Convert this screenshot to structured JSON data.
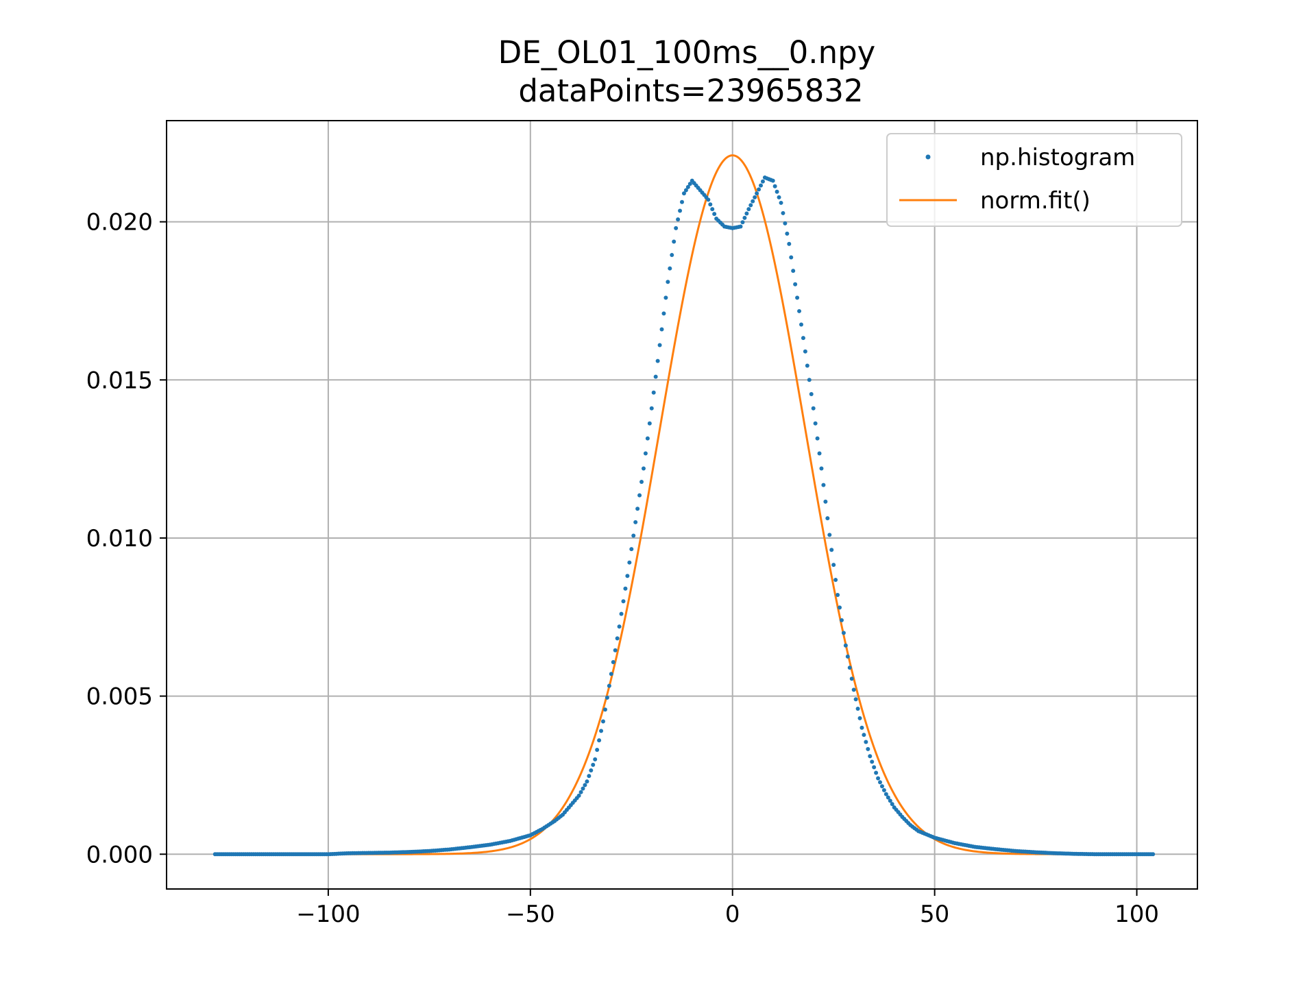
{
  "chart_data": {
    "type": "scatter",
    "title": "DE_OL01_100ms__0.npy",
    "subtitle": "dataPoints=23965832",
    "xlabel": "",
    "ylabel": "",
    "xlim": [
      -140,
      115
    ],
    "ylim": [
      -0.0011,
      0.0232
    ],
    "xticks": [
      -100,
      -50,
      0,
      50,
      100
    ],
    "xtick_labels": [
      "−100",
      "−50",
      "0",
      "50",
      "100"
    ],
    "yticks": [
      0.0,
      0.005,
      0.01,
      0.015,
      0.02
    ],
    "ytick_labels": [
      "0.000",
      "0.005",
      "0.010",
      "0.015",
      "0.020"
    ],
    "grid": true,
    "legend": "top-right",
    "colors": {
      "histogram": "#1f77b4",
      "fit": "#ff7f0e"
    },
    "series": [
      {
        "name": "np.histogram",
        "kind": "points",
        "points": [
          [
            -128,
            0.0
          ],
          [
            -120,
            0.0
          ],
          [
            -110,
            0.0
          ],
          [
            -100,
            0.0
          ],
          [
            -95,
            3e-05
          ],
          [
            -90,
            4e-05
          ],
          [
            -85,
            5e-05
          ],
          [
            -80,
            7e-05
          ],
          [
            -75,
            0.0001
          ],
          [
            -70,
            0.00015
          ],
          [
            -65,
            0.00022
          ],
          [
            -60,
            0.0003
          ],
          [
            -55,
            0.00042
          ],
          [
            -50,
            0.0006
          ],
          [
            -47,
            0.0008
          ],
          [
            -44,
            0.00105
          ],
          [
            -42,
            0.00125
          ],
          [
            -40,
            0.00155
          ],
          [
            -38,
            0.00185
          ],
          [
            -36,
            0.0023
          ],
          [
            -34,
            0.003
          ],
          [
            -32,
            0.0042
          ],
          [
            -30,
            0.0057
          ],
          [
            -28,
            0.0072
          ],
          [
            -26,
            0.0088
          ],
          [
            -24,
            0.0105
          ],
          [
            -22,
            0.0122
          ],
          [
            -20,
            0.0141
          ],
          [
            -18,
            0.0161
          ],
          [
            -16,
            0.0181
          ],
          [
            -14,
            0.0198
          ],
          [
            -12,
            0.0209
          ],
          [
            -10,
            0.0213
          ],
          [
            -8,
            0.021
          ],
          [
            -6,
            0.0207
          ],
          [
            -4,
            0.0201
          ],
          [
            -2,
            0.01985
          ],
          [
            0,
            0.0198
          ],
          [
            2,
            0.01985
          ],
          [
            4,
            0.0204
          ],
          [
            6,
            0.0209
          ],
          [
            8,
            0.0214
          ],
          [
            10,
            0.0213
          ],
          [
            12,
            0.0206
          ],
          [
            14,
            0.0193
          ],
          [
            16,
            0.0176
          ],
          [
            18,
            0.0159
          ],
          [
            20,
            0.0141
          ],
          [
            22,
            0.0122
          ],
          [
            24,
            0.0101
          ],
          [
            26,
            0.0082
          ],
          [
            28,
            0.0066
          ],
          [
            30,
            0.0052
          ],
          [
            32,
            0.004
          ],
          [
            34,
            0.0031
          ],
          [
            36,
            0.0024
          ],
          [
            38,
            0.0019
          ],
          [
            40,
            0.00148
          ],
          [
            42,
            0.00118
          ],
          [
            44,
            0.00092
          ],
          [
            46,
            0.00073
          ],
          [
            50,
            0.00052
          ],
          [
            55,
            0.00035
          ],
          [
            60,
            0.00023
          ],
          [
            65,
            0.00016
          ],
          [
            70,
            0.0001
          ],
          [
            75,
            6e-05
          ],
          [
            80,
            3e-05
          ],
          [
            85,
            1e-05
          ],
          [
            90,
            0.0
          ],
          [
            95,
            0.0
          ],
          [
            100,
            0.0
          ],
          [
            104,
            0.0
          ]
        ]
      },
      {
        "name": "norm.fit()",
        "kind": "line",
        "mean": 0,
        "std": 18.05,
        "x_range": [
          -128,
          104
        ]
      }
    ]
  }
}
